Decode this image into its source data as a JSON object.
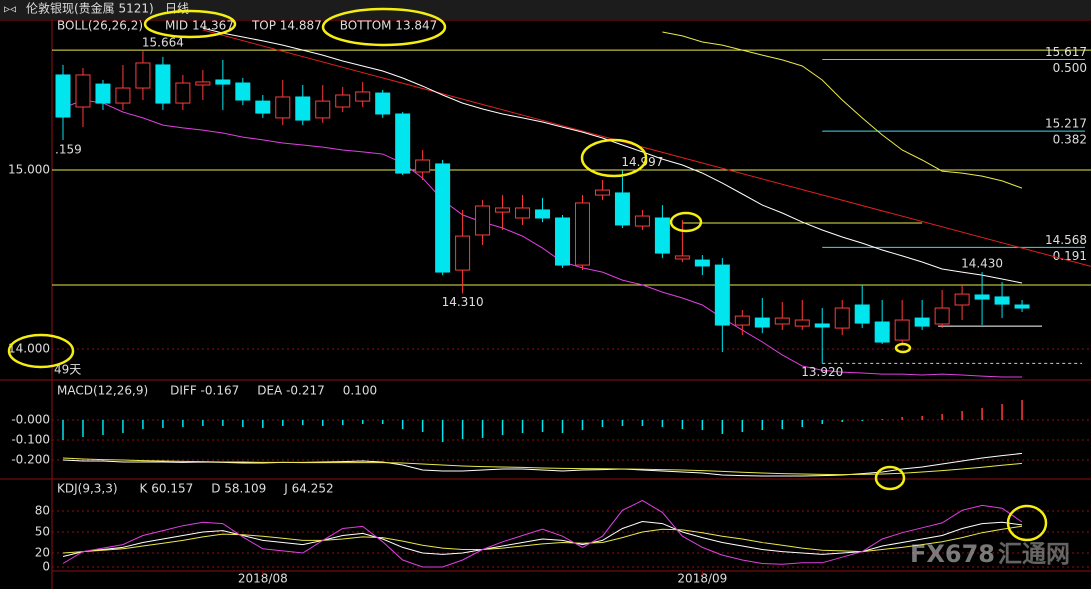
{
  "header": {
    "title": "伦敦银现(贵金属 5121)",
    "period": "日线"
  },
  "watermark": {
    "brand": "FX678",
    "name": "汇通网"
  },
  "chart_data": [
    {
      "type": "candlestick",
      "title": "BOLL(26,26,2)",
      "title_color": "#e8e84a",
      "open": [
        15.531,
        15.352,
        15.48,
        15.374,
        15.458,
        15.587,
        15.374,
        15.475,
        15.503,
        15.486,
        15.385,
        15.291,
        15.408,
        15.291,
        15.352,
        15.385,
        15.43,
        15.313,
        14.989,
        15.034,
        14.441,
        14.637,
        14.765,
        14.732,
        14.777,
        14.732,
        14.469,
        14.86,
        14.872,
        14.687,
        14.732,
        14.503,
        14.497,
        14.469,
        14.134,
        14.173,
        14.14,
        14.128,
        14.14,
        14.117,
        14.246,
        14.151,
        14.05,
        14.173,
        14.14,
        14.246,
        14.302,
        14.291,
        14.246
      ],
      "high": [
        15.587,
        15.57,
        15.503,
        15.587,
        15.664,
        15.632,
        15.531,
        15.559,
        15.615,
        15.514,
        15.419,
        15.503,
        15.475,
        15.475,
        15.464,
        15.492,
        15.447,
        15.324,
        15.112,
        15.056,
        14.777,
        14.832,
        14.86,
        14.86,
        14.844,
        14.749,
        14.86,
        14.944,
        14.997,
        14.777,
        14.804,
        14.72,
        14.525,
        14.508,
        14.218,
        14.285,
        14.263,
        14.274,
        14.229,
        14.274,
        14.358,
        14.274,
        14.274,
        14.274,
        14.33,
        14.358,
        14.43,
        14.374,
        14.274
      ],
      "low": [
        15.168,
        15.24,
        15.335,
        15.335,
        15.391,
        15.335,
        15.335,
        15.391,
        15.335,
        15.363,
        15.291,
        15.251,
        15.251,
        15.263,
        15.324,
        15.352,
        15.291,
        14.972,
        14.944,
        14.413,
        14.31,
        14.581,
        14.665,
        14.693,
        14.709,
        14.453,
        14.441,
        14.832,
        14.676,
        14.665,
        14.508,
        14.486,
        14.413,
        13.983,
        14.078,
        14.089,
        14.106,
        14.106,
        13.92,
        14.078,
        14.117,
        14.028,
        14.022,
        14.106,
        14.117,
        14.162,
        14.134,
        14.173,
        14.207
      ],
      "close": [
        15.296,
        15.531,
        15.374,
        15.458,
        15.598,
        15.374,
        15.486,
        15.492,
        15.48,
        15.391,
        15.318,
        15.408,
        15.279,
        15.385,
        15.419,
        15.436,
        15.313,
        14.983,
        15.056,
        14.43,
        14.631,
        14.799,
        14.788,
        14.788,
        14.732,
        14.469,
        14.816,
        14.888,
        14.693,
        14.743,
        14.536,
        14.52,
        14.464,
        14.134,
        14.184,
        14.123,
        14.173,
        14.162,
        14.123,
        14.229,
        14.145,
        14.039,
        14.162,
        14.128,
        14.229,
        14.307,
        14.279,
        14.251,
        14.229
      ],
      "up_color": "#ff3b3b",
      "down_color": "#00e5ee",
      "series": [
        {
          "name": "MID 14.367",
          "color": "#ffffff",
          "values": [
            null,
            null,
            null,
            null,
            null,
            null,
            null,
            15.793,
            15.765,
            15.743,
            15.721,
            15.698,
            15.67,
            15.642,
            15.609,
            15.581,
            15.553,
            15.514,
            15.469,
            15.419,
            15.374,
            15.341,
            15.313,
            15.291,
            15.268,
            15.24,
            15.212,
            15.179,
            15.14,
            15.101,
            15.061,
            15.028,
            14.983,
            14.927,
            14.866,
            14.804,
            14.76,
            14.709,
            14.665,
            14.626,
            14.592,
            14.553,
            14.52,
            14.486,
            14.447,
            14.43,
            14.413,
            14.391,
            14.369
          ]
        },
        {
          "name": "TOP 14.887",
          "color": "#e8e84a",
          "values": [
            null,
            null,
            null,
            null,
            null,
            null,
            null,
            null,
            null,
            null,
            null,
            null,
            null,
            null,
            null,
            null,
            null,
            null,
            null,
            null,
            null,
            null,
            null,
            null,
            null,
            null,
            null,
            null,
            null,
            null,
            15.771,
            15.749,
            15.715,
            15.698,
            15.67,
            15.642,
            15.615,
            15.581,
            15.503,
            15.391,
            15.291,
            15.196,
            15.112,
            15.056,
            14.994,
            14.983,
            14.966,
            14.939,
            14.899
          ]
        },
        {
          "name": "BOTTOM 13.847",
          "color": "#e040e0",
          "values": [
            15.346,
            15.391,
            15.374,
            15.324,
            15.291,
            15.251,
            15.235,
            15.223,
            15.207,
            15.184,
            15.168,
            15.151,
            15.14,
            15.128,
            15.112,
            15.101,
            15.089,
            15.039,
            14.955,
            14.832,
            14.749,
            14.709,
            14.676,
            14.631,
            14.564,
            14.486,
            14.453,
            14.43,
            14.385,
            14.358,
            14.318,
            14.285,
            14.246,
            14.173,
            14.106,
            14.039,
            13.967,
            13.905,
            13.882,
            13.871,
            13.866,
            13.86,
            13.86,
            13.855,
            13.86,
            13.855,
            13.849,
            13.844,
            13.844
          ]
        }
      ],
      "ylim": [
        13.827,
        15.838
      ],
      "yticks": [
        {
          "value": 15,
          "label": "15.000"
        },
        {
          "value": 14,
          "label": "14.000"
        }
      ],
      "annotations": [
        {
          "x": 5,
          "value": 15.664,
          "label": "15.664",
          "color": "#ff4040"
        },
        {
          "x": 20,
          "value": 14.31,
          "label": "14.310",
          "color": "#40e0f0"
        },
        {
          "x": 29,
          "value": 14.997,
          "label": "14.997",
          "color": "#ff4040"
        },
        {
          "x": 46,
          "value": 14.43,
          "label": "14.430",
          "color": "#ff4040"
        },
        {
          "x": 38,
          "value": 13.92,
          "label": "13.920",
          "color": "#40e0f0"
        }
      ],
      "hlines": [
        {
          "value": 15.67,
          "color": "#e8e84a"
        },
        {
          "value": 15.0,
          "color": "#e8e84a"
        },
        {
          "value": 14.358,
          "color": "#e8e84a"
        },
        {
          "value": 14.704,
          "color": "#e8e84a",
          "x": [
            31,
            43
          ]
        },
        {
          "value": 14.128,
          "color": "#ffffff",
          "x": [
            43.8,
            49
          ]
        },
        {
          "value": 13.92,
          "color": "#cccccc",
          "x": [
            38,
            51
          ],
          "dashed": true
        }
      ],
      "fib_levels": [
        {
          "value": 15.617,
          "ratio": {
            "value": 0.5,
            "label": "0.500"
          }
        },
        {
          "value": 15.217,
          "ratio": {
            "value": 0.382,
            "label": "0.382"
          }
        },
        {
          "value": 14.568,
          "ratio": {
            "value": 0.191,
            "label": "0.191"
          }
        }
      ],
      "fib_color": "#40d8e8",
      "trendline": {
        "x": [
          7,
          48
        ],
        "values": [
          15.782,
          14.564
        ],
        "color": "#e02020"
      },
      "duration": "49天",
      "edge_label": ".159"
    },
    {
      "type": "macd",
      "title": "MACD(12,26,9)",
      "histogram": [
        -0.1,
        -0.085,
        -0.075,
        -0.065,
        -0.045,
        -0.04,
        -0.035,
        -0.03,
        -0.03,
        -0.035,
        -0.04,
        -0.03,
        -0.025,
        -0.03,
        -0.025,
        -0.02,
        -0.02,
        -0.045,
        -0.06,
        -0.11,
        -0.095,
        -0.09,
        -0.075,
        -0.065,
        -0.06,
        -0.065,
        -0.05,
        -0.035,
        -0.03,
        -0.03,
        -0.035,
        -0.045,
        -0.05,
        -0.07,
        -0.06,
        -0.05,
        -0.045,
        -0.035,
        -0.02,
        -0.01,
        -0.005,
        0.005,
        0.015,
        0.02,
        0.03,
        0.045,
        0.06,
        0.08,
        0.1
      ],
      "histogram_label": {
        "value": 0.1,
        "label": "0.100"
      },
      "series": [
        {
          "name": "DIFF -0.167",
          "color": "#ffffff",
          "values": [
            -0.2,
            -0.205,
            -0.205,
            -0.21,
            -0.21,
            -0.21,
            -0.212,
            -0.21,
            -0.212,
            -0.215,
            -0.215,
            -0.212,
            -0.212,
            -0.21,
            -0.208,
            -0.205,
            -0.21,
            -0.225,
            -0.25,
            -0.255,
            -0.255,
            -0.25,
            -0.245,
            -0.245,
            -0.25,
            -0.255,
            -0.25,
            -0.248,
            -0.245,
            -0.25,
            -0.255,
            -0.26,
            -0.265,
            -0.275,
            -0.278,
            -0.28,
            -0.28,
            -0.28,
            -0.278,
            -0.275,
            -0.268,
            -0.26,
            -0.245,
            -0.235,
            -0.22,
            -0.205,
            -0.19,
            -0.178,
            -0.167
          ]
        },
        {
          "name": "DEA -0.217",
          "color": "#e8e84a",
          "values": [
            -0.19,
            -0.195,
            -0.198,
            -0.2,
            -0.203,
            -0.205,
            -0.207,
            -0.208,
            -0.21,
            -0.21,
            -0.212,
            -0.212,
            -0.213,
            -0.213,
            -0.213,
            -0.213,
            -0.213,
            -0.215,
            -0.22,
            -0.225,
            -0.23,
            -0.233,
            -0.235,
            -0.237,
            -0.24,
            -0.242,
            -0.243,
            -0.244,
            -0.245,
            -0.246,
            -0.248,
            -0.25,
            -0.253,
            -0.257,
            -0.261,
            -0.265,
            -0.268,
            -0.27,
            -0.272,
            -0.273,
            -0.272,
            -0.27,
            -0.266,
            -0.26,
            -0.253,
            -0.245,
            -0.236,
            -0.226,
            -0.217
          ]
        }
      ],
      "ylim": [
        -0.29,
        0.2
      ],
      "yticks": [
        {
          "value": 0,
          "label": "-0.000"
        },
        {
          "value": -0.1,
          "label": "-0.100"
        },
        {
          "value": -0.2,
          "label": "-0.200"
        }
      ]
    },
    {
      "type": "kdj",
      "title": "KDJ(9,3,3)",
      "categories": [
        null,
        null,
        null,
        null,
        null,
        null,
        null,
        null,
        null,
        null,
        "2018/08",
        null,
        null,
        null,
        null,
        null,
        null,
        null,
        null,
        null,
        null,
        null,
        null,
        null,
        null,
        null,
        null,
        null,
        null,
        null,
        null,
        null,
        "2018/09",
        null,
        null,
        null,
        null,
        null,
        null,
        null,
        null,
        null,
        null,
        null,
        null,
        null,
        null,
        null,
        null
      ],
      "series": [
        {
          "name": "K 60.157",
          "color": "#ffffff",
          "values": [
            15,
            22,
            25,
            28,
            35,
            40,
            45,
            50,
            52,
            45,
            38,
            35,
            32,
            38,
            45,
            48,
            40,
            28,
            20,
            18,
            20,
            25,
            30,
            35,
            40,
            38,
            32,
            38,
            55,
            65,
            62,
            50,
            42,
            35,
            30,
            25,
            22,
            20,
            18,
            20,
            22,
            30,
            35,
            40,
            45,
            55,
            62,
            64,
            60.157
          ]
        },
        {
          "name": "D 58.109",
          "color": "#e8e84a",
          "values": [
            20,
            22,
            24,
            26,
            30,
            34,
            38,
            43,
            47,
            46,
            44,
            41,
            38,
            38,
            40,
            43,
            42,
            37,
            31,
            27,
            25,
            25,
            27,
            30,
            33,
            35,
            34,
            35,
            42,
            50,
            54,
            53,
            49,
            44,
            40,
            35,
            31,
            27,
            24,
            23,
            22,
            25,
            28,
            32,
            36,
            42,
            49,
            54,
            58.109
          ]
        },
        {
          "name": "J 64.252",
          "color": "#e040e0",
          "values": [
            5,
            22,
            27,
            32,
            45,
            52,
            59,
            64,
            62,
            43,
            26,
            23,
            20,
            38,
            55,
            58,
            36,
            10,
            0,
            0,
            10,
            25,
            36,
            45,
            54,
            44,
            28,
            44,
            81,
            95,
            78,
            44,
            28,
            17,
            10,
            5,
            4,
            6,
            6,
            14,
            22,
            40,
            49,
            56,
            63,
            81,
            88,
            84,
            64.252
          ]
        }
      ],
      "ylim": [
        -11.43,
        124.29
      ],
      "yticks": [
        0,
        20,
        50,
        80
      ]
    }
  ]
}
